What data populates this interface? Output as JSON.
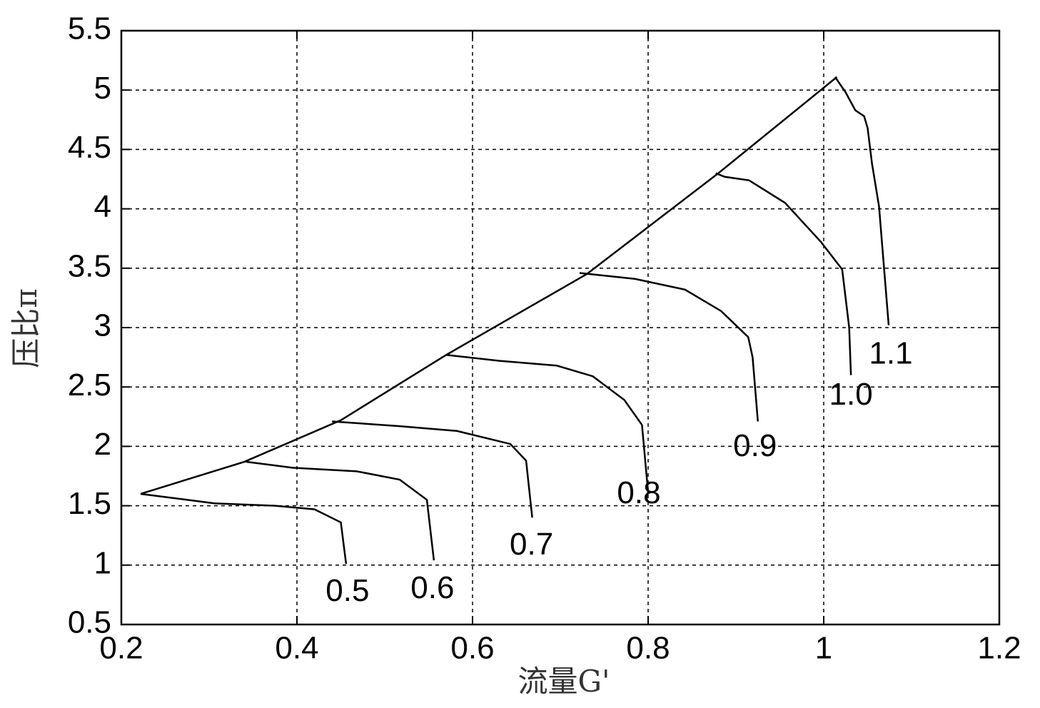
{
  "chart_data": {
    "type": "line",
    "xlabel": "流量G'",
    "ylabel": "压比π",
    "xlim": [
      0.2,
      1.2
    ],
    "xticks": [
      0.2,
      0.4,
      0.6,
      0.8,
      1,
      1.2
    ],
    "ylim": [
      0.5,
      5.5
    ],
    "yticks": [
      0.5,
      1,
      1.5,
      2,
      2.5,
      3,
      3.5,
      4,
      4.5,
      5,
      5.5
    ],
    "grid": true,
    "series": [
      {
        "color": "#000000",
        "x": [
          0.222,
          0.34,
          0.45,
          0.57,
          0.73,
          0.88,
          1.015
        ],
        "values": [
          1.6,
          1.87,
          2.22,
          2.77,
          3.45,
          4.3,
          5.11
        ]
      },
      {
        "name": "0.5",
        "color": "#000000",
        "x": [
          0.222,
          0.306,
          0.375,
          0.42,
          0.45,
          0.456
        ],
        "values": [
          1.6,
          1.52,
          1.5,
          1.47,
          1.36,
          1.01
        ]
      },
      {
        "name": "0.6",
        "color": "#000000",
        "x": [
          0.342,
          0.395,
          0.468,
          0.517,
          0.548,
          0.556
        ],
        "values": [
          1.87,
          1.82,
          1.79,
          1.72,
          1.55,
          1.04
        ]
      },
      {
        "name": "0.7",
        "color": "#000000",
        "x": [
          0.44,
          0.517,
          0.582,
          0.643,
          0.661,
          0.668
        ],
        "values": [
          2.21,
          2.17,
          2.13,
          2.02,
          1.88,
          1.4
        ]
      },
      {
        "name": "0.8",
        "color": "#000000",
        "x": [
          0.57,
          0.631,
          0.696,
          0.737,
          0.773,
          0.793,
          0.8
        ],
        "values": [
          2.77,
          2.72,
          2.68,
          2.59,
          2.39,
          2.18,
          1.61
        ]
      },
      {
        "name": "0.9",
        "color": "#000000",
        "x": [
          0.722,
          0.785,
          0.842,
          0.883,
          0.914,
          0.919,
          0.925
        ],
        "values": [
          3.46,
          3.41,
          3.32,
          3.14,
          2.92,
          2.75,
          2.21
        ]
      },
      {
        "name": "1.0",
        "color": "#000000",
        "x": [
          0.877,
          0.887,
          0.915,
          0.956,
          0.997,
          1.021,
          1.029,
          1.031
        ],
        "values": [
          4.3,
          4.27,
          4.24,
          4.05,
          3.72,
          3.49,
          3.0,
          2.6
        ]
      },
      {
        "name": "1.1",
        "color": "#000000",
        "x": [
          1.013,
          1.025,
          1.036,
          1.046,
          1.05,
          1.055,
          1.063,
          1.074
        ],
        "values": [
          5.11,
          4.98,
          4.83,
          4.78,
          4.68,
          4.38,
          4.02,
          3.02
        ]
      }
    ]
  }
}
